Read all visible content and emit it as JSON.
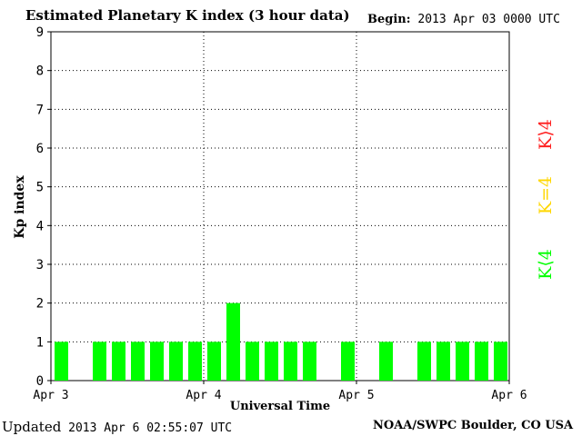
{
  "header": {
    "title": "Estimated Planetary K index (3 hour data)",
    "begin_label": "Begin:",
    "begin_value": "2013 Apr 03 0000 UTC"
  },
  "footer": {
    "updated_label": "Updated",
    "updated_value": "2013 Apr  6 02:55:07 UTC",
    "credit": "NOAA/SWPC Boulder, CO USA"
  },
  "legend": {
    "high": "K⟩4",
    "equal": "K=4",
    "low": "K⟨4"
  },
  "colors": {
    "low": "#00ff00",
    "equal": "#ffd700",
    "high": "#ff2020",
    "grid": "#000000"
  },
  "chart_data": {
    "type": "bar",
    "xlabel": "Universal Time",
    "ylabel": "Kp index",
    "ylim": [
      0,
      9
    ],
    "yticks": [
      "0",
      "1",
      "2",
      "3",
      "4",
      "5",
      "6",
      "7",
      "8",
      "9"
    ],
    "xticks": [
      "Apr 3",
      "Apr 4",
      "Apr 5",
      "Apr 6"
    ],
    "grid": true,
    "categories": [
      "Apr 3 00",
      "Apr 3 03",
      "Apr 3 06",
      "Apr 3 09",
      "Apr 3 12",
      "Apr 3 15",
      "Apr 3 18",
      "Apr 3 21",
      "Apr 4 00",
      "Apr 4 03",
      "Apr 4 06",
      "Apr 4 09",
      "Apr 4 12",
      "Apr 4 15",
      "Apr 4 18",
      "Apr 4 21",
      "Apr 5 00",
      "Apr 5 03",
      "Apr 5 06",
      "Apr 5 09",
      "Apr 5 12",
      "Apr 5 15",
      "Apr 5 18",
      "Apr 5 21"
    ],
    "values": [
      1,
      0,
      1,
      1,
      1,
      1,
      1,
      1,
      1,
      2,
      1,
      1,
      1,
      1,
      0,
      1,
      0,
      1,
      0,
      1,
      1,
      1,
      1,
      1
    ]
  }
}
